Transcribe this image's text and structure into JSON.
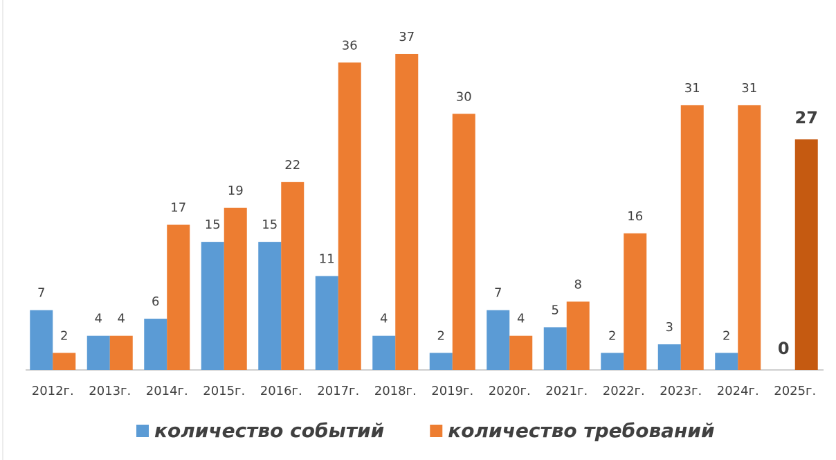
{
  "chart_data": {
    "type": "bar",
    "categories": [
      "2012г.",
      "2013г.",
      "2014г.",
      "2015г.",
      "2016г.",
      "2017г.",
      "2018г.",
      "2019г.",
      "2020г.",
      "2021г.",
      "2022г.",
      "2023г.",
      "2024г.",
      "2025г."
    ],
    "series": [
      {
        "name": "количество событий",
        "color": "#5b9bd5",
        "values": [
          7,
          4,
          6,
          15,
          15,
          11,
          4,
          2,
          7,
          5,
          2,
          3,
          2,
          0
        ]
      },
      {
        "name": "количество требований",
        "color": "#ed7d31",
        "values": [
          2,
          4,
          17,
          19,
          22,
          36,
          37,
          30,
          4,
          8,
          16,
          31,
          31,
          27
        ],
        "colors": [
          "#ed7d31",
          "#ed7d31",
          "#ed7d31",
          "#ed7d31",
          "#ed7d31",
          "#ed7d31",
          "#ed7d31",
          "#ed7d31",
          "#ed7d31",
          "#ed7d31",
          "#ed7d31",
          "#ed7d31",
          "#ed7d31",
          "#c55a11"
        ]
      }
    ],
    "ylim": [
      0,
      40
    ],
    "legend": "bottom"
  }
}
